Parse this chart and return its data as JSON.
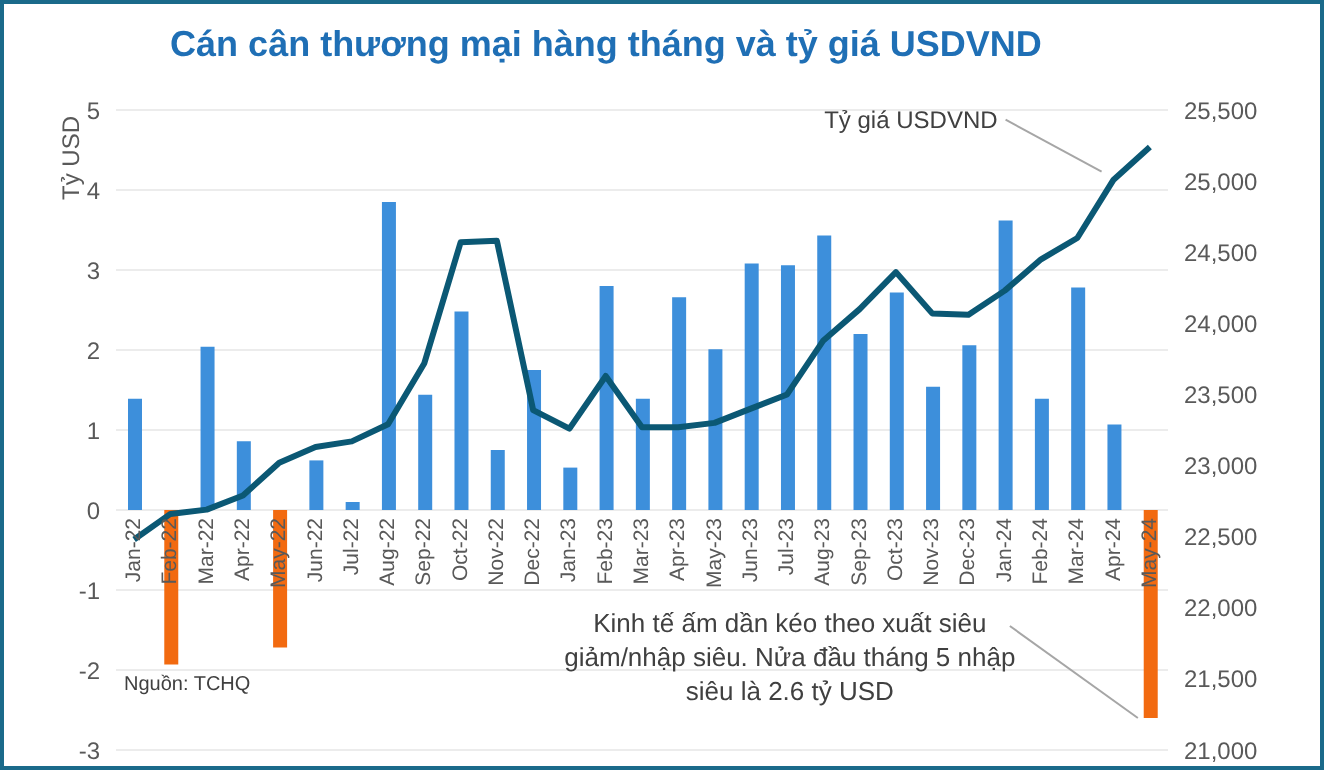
{
  "chart_data": {
    "type": "bar",
    "title": "Cán cân thương mại hàng tháng và tỷ giá USDVND",
    "ylabel": "Tỷ USD",
    "categories": [
      "Jan-22",
      "Feb-22",
      "Mar-22",
      "Apr-22",
      "May-22",
      "Jun-22",
      "Jul-22",
      "Aug-22",
      "Sep-22",
      "Oct-22",
      "Nov-22",
      "Dec-22",
      "Jan-23",
      "Feb-23",
      "Mar-23",
      "Apr-23",
      "May-23",
      "Jun-23",
      "Jul-23",
      "Aug-23",
      "Sep-23",
      "Oct-23",
      "Nov-23",
      "Dec-23",
      "Jan-24",
      "Feb-24",
      "Mar-24",
      "Apr-24",
      "May-24"
    ],
    "series": [
      {
        "color": "#3d8fdb",
        "values": [
          1.39,
          -1.93,
          2.04,
          0.86,
          -1.72,
          0.62,
          0.1,
          3.85,
          1.44,
          2.48,
          0.75,
          1.75,
          0.53,
          2.8,
          1.39,
          2.66,
          2.01,
          3.08,
          3.06,
          3.43,
          2.2,
          2.72,
          1.54,
          2.06,
          3.62,
          1.39,
          2.78,
          1.07,
          -2.6
        ],
        "colors": [
          "#3d8fdb",
          "#f26a10",
          "#3d8fdb",
          "#3d8fdb",
          "#f26a10",
          "#3d8fdb",
          "#3d8fdb",
          "#3d8fdb",
          "#3d8fdb",
          "#3d8fdb",
          "#3d8fdb",
          "#3d8fdb",
          "#3d8fdb",
          "#3d8fdb",
          "#3d8fdb",
          "#3d8fdb",
          "#3d8fdb",
          "#3d8fdb",
          "#3d8fdb",
          "#3d8fdb",
          "#3d8fdb",
          "#3d8fdb",
          "#3d8fdb",
          "#3d8fdb",
          "#3d8fdb",
          "#3d8fdb",
          "#3d8fdb",
          "#3d8fdb",
          "#f26a10"
        ]
      },
      {
        "type": "line",
        "name": "Tỷ giá USDVND",
        "axis": "y2",
        "color": "#0b5874",
        "values": [
          22480,
          22660,
          22690,
          22790,
          23020,
          23130,
          23170,
          23290,
          23720,
          24570,
          24580,
          23390,
          23260,
          23630,
          23270,
          23270,
          23300,
          23400,
          23500,
          23880,
          24100,
          24360,
          24070,
          24060,
          24230,
          24450,
          24600,
          25010,
          25240
        ]
      }
    ],
    "ylim": [
      -3,
      5
    ],
    "yticks": [
      -3,
      -2,
      -1,
      0,
      1,
      2,
      3,
      4,
      5
    ],
    "y2lim": [
      21000,
      25500
    ],
    "y2ticks": [
      {
        "value": 21000,
        "label": "21,000"
      },
      {
        "value": 21500,
        "label": "21,500"
      },
      {
        "value": 22000,
        "label": "22,000"
      },
      {
        "value": 22500,
        "label": "22,500"
      },
      {
        "value": 23000,
        "label": "23,000"
      },
      {
        "value": 23500,
        "label": "23,500"
      },
      {
        "value": 24000,
        "label": "24,000"
      },
      {
        "value": 24500,
        "label": "24,500"
      },
      {
        "value": 25000,
        "label": "25,000"
      },
      {
        "value": 25500,
        "label": "25,500"
      }
    ],
    "grid": "y",
    "legend": false,
    "marker": "none",
    "line_style": "solid",
    "annotations": [
      {
        "text": "Kinh tế ấm dần kéo theo xuất siêu giảm/nhập siêu. Nửa đầu tháng 5 nhập siêu là 2.6 tỷ USD",
        "x": "May-24",
        "y": -2.6
      },
      "Nguồn: TCHQ"
    ]
  }
}
